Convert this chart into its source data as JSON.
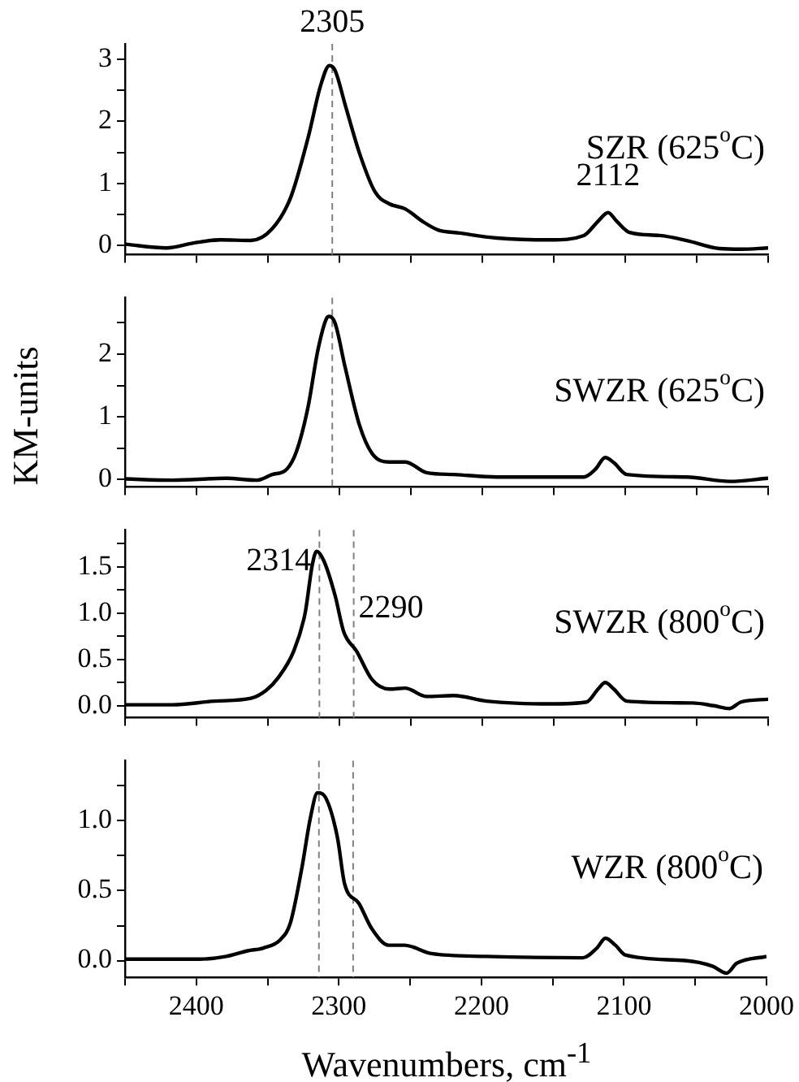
{
  "chart_data": [
    {
      "type": "line",
      "xlim": [
        2450,
        2000
      ],
      "ylim": [
        -0.15,
        3.25
      ],
      "xticks": [
        {
          "value": 2450,
          "label": null
        },
        2400,
        {
          "value": 2350,
          "label": null
        },
        2300,
        {
          "value": 2250,
          "label": null
        },
        2200,
        {
          "value": 2150,
          "label": null
        },
        2100,
        {
          "value": 2050,
          "label": null
        },
        2000
      ],
      "yticks": [
        0,
        {
          "value": 0.5,
          "label": null
        },
        1,
        {
          "value": 1.5,
          "label": null
        },
        2,
        {
          "value": 2.5,
          "label": null
        },
        3
      ],
      "tick_labels": "y",
      "marker": "none",
      "ref_lines": [
        {
          "axis": "x",
          "value": 2305,
          "label": "2305",
          "color": "#808080",
          "line_style": "dashed"
        }
      ],
      "annotations": [
        "SZR (625$^{o}$C)",
        {
          "text": "2112",
          "x": 2112,
          "y": 0.53
        }
      ],
      "series": [
        {
          "color": "#000000",
          "x": [
            2450,
            2421,
            2402,
            2383,
            2362,
            2347,
            2334,
            2322,
            2313,
            2307,
            2303,
            2296,
            2286,
            2275,
            2265,
            2254,
            2242,
            2231,
            2216,
            2190,
            2152,
            2129,
            2119,
            2112,
            2106,
            2097,
            2076,
            2057,
            2034,
            2019,
            2000
          ],
          "values": [
            0.02,
            -0.04,
            0.04,
            0.09,
            0.08,
            0.27,
            0.78,
            1.73,
            2.59,
            2.9,
            2.82,
            2.27,
            1.49,
            0.86,
            0.67,
            0.59,
            0.39,
            0.25,
            0.2,
            0.12,
            0.09,
            0.16,
            0.39,
            0.53,
            0.39,
            0.21,
            0.16,
            0.08,
            -0.05,
            -0.06,
            -0.04
          ]
        }
      ]
    },
    {
      "type": "line",
      "ylabel": "KM-units",
      "xlim": [
        2450,
        2000
      ],
      "ylim": [
        -0.12,
        2.9
      ],
      "xticks": [
        {
          "value": 2450,
          "label": null
        },
        2400,
        {
          "value": 2350,
          "label": null
        },
        2300,
        {
          "value": 2250,
          "label": null
        },
        2200,
        {
          "value": 2150,
          "label": null
        },
        2100,
        {
          "value": 2050,
          "label": null
        },
        2000
      ],
      "yticks": [
        0,
        {
          "value": 0.5,
          "label": null
        },
        1,
        {
          "value": 1.5,
          "label": null
        },
        2,
        {
          "value": 2.5,
          "label": null
        }
      ],
      "tick_labels": "y",
      "marker": "none",
      "ref_lines": [
        {
          "axis": "x",
          "value": 2305,
          "color": "#808080",
          "line_style": "dashed"
        }
      ],
      "annotations": [
        "SWZR (625$^{o}$C)"
      ],
      "series": [
        {
          "color": "#000000",
          "x": [
            2450,
            2417,
            2379,
            2358,
            2347,
            2337,
            2330,
            2322,
            2315,
            2309,
            2307,
            2303,
            2296,
            2286,
            2277,
            2265,
            2254,
            2239,
            2220,
            2190,
            2129,
            2121,
            2114,
            2108,
            2099,
            2057,
            2027,
            2000
          ],
          "values": [
            0.01,
            -0.01,
            0.02,
            -0.01,
            0.08,
            0.16,
            0.45,
            1.15,
            2.07,
            2.57,
            2.6,
            2.49,
            1.79,
            0.87,
            0.41,
            0.28,
            0.28,
            0.11,
            0.08,
            0.04,
            0.04,
            0.16,
            0.35,
            0.27,
            0.08,
            0.04,
            -0.03,
            0.02
          ]
        }
      ]
    },
    {
      "type": "line",
      "xlim": [
        2450,
        2000
      ],
      "ylim": [
        -0.13,
        1.9
      ],
      "xticks": [
        {
          "value": 2450,
          "label": null
        },
        2400,
        {
          "value": 2350,
          "label": null
        },
        2300,
        {
          "value": 2250,
          "label": null
        },
        2200,
        {
          "value": 2150,
          "label": null
        },
        2100,
        {
          "value": 2050,
          "label": null
        },
        2000
      ],
      "yticks": [
        {
          "value": 0,
          "label": "0.0"
        },
        {
          "value": 0.25,
          "label": null
        },
        {
          "value": 0.5,
          "label": "0.5"
        },
        {
          "value": 0.75,
          "label": null
        },
        {
          "value": 1,
          "label": "1.0"
        },
        {
          "value": 1.25,
          "label": null
        },
        {
          "value": 1.5,
          "label": "1.5"
        },
        {
          "value": 1.75,
          "label": null
        }
      ],
      "tick_labels": "y",
      "marker": "none",
      "ref_lines": [
        {
          "axis": "x",
          "value": 2314,
          "label": "2314",
          "color": "#808080",
          "line_style": "dashed"
        },
        {
          "axis": "x",
          "value": 2290,
          "label": "2290",
          "color": "#808080",
          "line_style": "dashed"
        }
      ],
      "annotations": [
        "SWZR (800$^{o}$C)"
      ],
      "series": [
        {
          "color": "#000000",
          "x": [
            2450,
            2417,
            2387,
            2362,
            2351,
            2343,
            2332,
            2324,
            2319,
            2316,
            2311,
            2303,
            2297,
            2288,
            2277,
            2265,
            2254,
            2239,
            2220,
            2197,
            2152,
            2127,
            2119,
            2114,
            2108,
            2099,
            2053,
            2038,
            2027,
            2019,
            2000
          ],
          "values": [
            0.01,
            0.01,
            0.05,
            0.08,
            0.17,
            0.3,
            0.59,
            1.0,
            1.52,
            1.67,
            1.57,
            1.19,
            0.8,
            0.59,
            0.28,
            0.18,
            0.19,
            0.1,
            0.11,
            0.05,
            0.02,
            0.04,
            0.18,
            0.25,
            0.18,
            0.05,
            0.03,
            0.0,
            -0.03,
            0.04,
            0.07
          ]
        }
      ]
    },
    {
      "type": "line",
      "xlabel": "Wavenumbers, cm$^{-1}$",
      "xlim": [
        2450,
        2000
      ],
      "ylim": [
        -0.12,
        1.43
      ],
      "xticks": [
        {
          "value": 2450,
          "label": null
        },
        2400,
        {
          "value": 2350,
          "label": null
        },
        2300,
        {
          "value": 2250,
          "label": null
        },
        2200,
        {
          "value": 2150,
          "label": null
        },
        2100,
        {
          "value": 2050,
          "label": null
        },
        2000
      ],
      "yticks": [
        {
          "value": 0,
          "label": "0.0"
        },
        {
          "value": 0.25,
          "label": null
        },
        {
          "value": 0.5,
          "label": "0.5"
        },
        {
          "value": 0.75,
          "label": null
        },
        {
          "value": 1,
          "label": "1.0"
        },
        {
          "value": 1.25,
          "label": null
        }
      ],
      "marker": "none",
      "ref_lines": [
        {
          "axis": "x",
          "value": 2314,
          "color": "#808080",
          "line_style": "dashed"
        },
        {
          "axis": "x",
          "value": 2290,
          "color": "#808080",
          "line_style": "dashed"
        }
      ],
      "annotations": [
        "WZR (800$^{o}$C)"
      ],
      "series": [
        {
          "color": "#000000",
          "x": [
            2450,
            2398,
            2379,
            2364,
            2353,
            2341,
            2334,
            2326,
            2320,
            2315,
            2309,
            2301,
            2296,
            2286,
            2277,
            2265,
            2254,
            2235,
            2197,
            2129,
            2119,
            2113,
            2106,
            2099,
            2057,
            2038,
            2028,
            2021,
            2000
          ],
          "values": [
            0.01,
            0.01,
            0.03,
            0.07,
            0.09,
            0.15,
            0.27,
            0.66,
            1.02,
            1.2,
            1.16,
            0.88,
            0.55,
            0.41,
            0.23,
            0.11,
            0.11,
            0.05,
            0.03,
            0.02,
            0.09,
            0.16,
            0.11,
            0.04,
            0.0,
            -0.04,
            -0.09,
            -0.02,
            0.03
          ]
        }
      ]
    }
  ]
}
